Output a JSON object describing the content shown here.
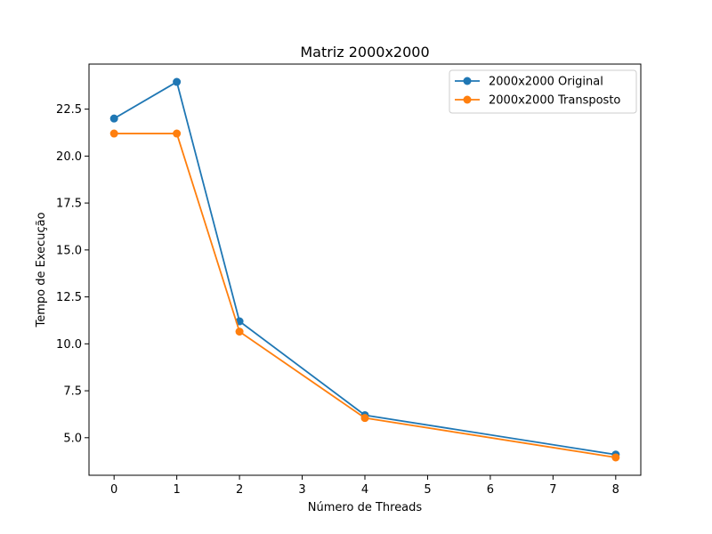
{
  "chart_data": {
    "type": "line",
    "title": "Matriz 2000x2000",
    "xlabel": "Número de Threads",
    "ylabel": "Tempo de Execução",
    "x": [
      "0",
      "1",
      "2",
      "4",
      "8"
    ],
    "x_tick_labels": [
      "0",
      "1",
      "2",
      "3",
      "4",
      "5",
      "6",
      "7",
      "8"
    ],
    "y_tick_labels": [
      "5.0",
      "7.5",
      "10.0",
      "12.5",
      "15.0",
      "17.5",
      "20.0",
      "22.5"
    ],
    "y_ticks": [
      5.0,
      7.5,
      10.0,
      12.5,
      15.0,
      17.5,
      20.0,
      22.5
    ],
    "ylim": [
      3.0,
      24.9
    ],
    "grid": false,
    "legend_position": "top-right",
    "series": [
      {
        "name": "2000x2000 Original",
        "color": "#1f77b4",
        "values": [
          22.0,
          23.95,
          11.2,
          6.2,
          4.1
        ]
      },
      {
        "name": "2000x2000 Transposto",
        "color": "#ff7f0e",
        "values": [
          21.2,
          21.2,
          10.65,
          6.05,
          3.95
        ]
      }
    ]
  }
}
